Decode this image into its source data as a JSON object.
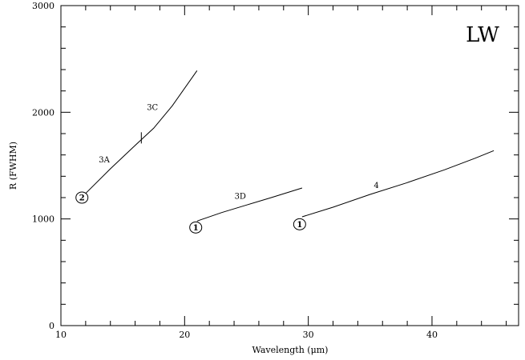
{
  "chart_data": {
    "type": "line",
    "title": "",
    "panel_label": "LW",
    "xlabel": "Wavelength (μm)",
    "ylabel": "R (FWHM)",
    "xlim": [
      10,
      47
    ],
    "ylim": [
      0,
      3000
    ],
    "x_major_ticks": [
      10,
      20,
      30,
      40
    ],
    "x_minor_step": 2,
    "y_major_ticks": [
      0,
      1000,
      2000,
      3000
    ],
    "y_minor_step": 200,
    "x_tick_labels": [
      "10",
      "20",
      "30",
      "40"
    ],
    "y_tick_labels": [
      "0",
      "1000",
      "2000",
      "3000"
    ],
    "grid": false,
    "series": [
      {
        "points": [
          [
            12.0,
            1240
          ],
          [
            14.0,
            1470
          ],
          [
            16.0,
            1690
          ],
          [
            17.5,
            1850
          ],
          [
            19.0,
            2060
          ],
          [
            21.0,
            2390
          ]
        ]
      },
      {
        "points": [
          [
            21.0,
            980
          ],
          [
            23.0,
            1060
          ],
          [
            25.0,
            1130
          ],
          [
            27.0,
            1200
          ],
          [
            29.5,
            1290
          ]
        ]
      },
      {
        "points": [
          [
            29.5,
            1020
          ],
          [
            32.0,
            1110
          ],
          [
            35.0,
            1230
          ],
          [
            38.0,
            1340
          ],
          [
            41.0,
            1460
          ],
          [
            43.5,
            1570
          ],
          [
            45.0,
            1640
          ]
        ]
      }
    ],
    "band_labels": [
      {
        "text": "3A",
        "x": 13.5,
        "y": 1530
      },
      {
        "text": "3C",
        "x": 17.4,
        "y": 2020
      },
      {
        "text": "3D",
        "x": 24.5,
        "y": 1190
      },
      {
        "text": "4",
        "x": 35.5,
        "y": 1290
      }
    ],
    "order_markers": [
      {
        "text": "2",
        "x": 11.7,
        "y": 1200
      },
      {
        "text": "1",
        "x": 20.9,
        "y": 920
      },
      {
        "text": "1",
        "x": 29.3,
        "y": 950
      }
    ],
    "split_marker": {
      "x": 16.5,
      "y": 1760
    }
  }
}
